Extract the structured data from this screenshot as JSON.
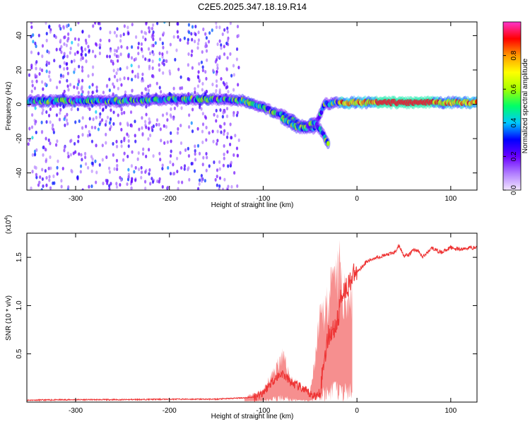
{
  "page": {
    "title": "C2E5.2025.347.18.19.R14"
  },
  "chart_data": [
    {
      "id": "spectrogram",
      "type": "heatmap",
      "title": "C2E5.2025.347.18.19.R14",
      "xlabel": "Height of straight line (km)",
      "ylabel": "Frequency (Hz)",
      "xlim": [
        -352,
        128
      ],
      "ylim": [
        -50,
        48
      ],
      "xticks": [
        -300,
        -200,
        -100,
        0,
        100
      ],
      "yticks": [
        -40,
        -20,
        0,
        20,
        40
      ],
      "colorbar": {
        "label": "Normalized spectral amplitude",
        "range": [
          0,
          1
        ],
        "ticks": [
          0.0,
          0.2,
          0.4,
          0.6,
          0.8
        ],
        "tick_labels": [
          "0.0",
          "0.2",
          "0.4",
          "0.6",
          "0.8"
        ],
        "colors": [
          "#f3e6ff",
          "#b07cff",
          "#6a00ff",
          "#0000ff",
          "#00c8ff",
          "#00ff66",
          "#a6ff00",
          "#ffff00",
          "#ff9900",
          "#ff0000",
          "#ff33cc"
        ]
      },
      "carrier_track": [
        {
          "x": -350,
          "f": 2
        },
        {
          "x": -300,
          "f": 2
        },
        {
          "x": -250,
          "f": 2
        },
        {
          "x": -200,
          "f": 3
        },
        {
          "x": -150,
          "f": 3
        },
        {
          "x": -120,
          "f": 2
        },
        {
          "x": -100,
          "f": -2
        },
        {
          "x": -80,
          "f": -6
        },
        {
          "x": -60,
          "f": -12
        },
        {
          "x": -45,
          "f": -14
        },
        {
          "x": -35,
          "f": 0
        },
        {
          "x": -20,
          "f": 1
        },
        {
          "x": 0,
          "f": 1
        },
        {
          "x": 50,
          "f": 1
        },
        {
          "x": 128,
          "f": 1
        }
      ],
      "secondary_track": [
        {
          "x": -80,
          "f": -8
        },
        {
          "x": -65,
          "f": -13
        },
        {
          "x": -55,
          "f": -14
        },
        {
          "x": -45,
          "f": -10
        },
        {
          "x": -30,
          "f": -23
        }
      ],
      "noise_region": {
        "x_start": -352,
        "x_end": -125,
        "f_min": -50,
        "f_max": 48
      }
    },
    {
      "id": "snr",
      "type": "line",
      "xlabel": "Height of straight line (km)",
      "ylabel": "SNR (10 * v/v)",
      "y_multiplier": "(x10",
      "y_multiplier_exp": "4",
      "y_multiplier_close": ")",
      "xlim": [
        -352,
        128
      ],
      "ylim": [
        0,
        1.75
      ],
      "xticks": [
        -300,
        -200,
        -100,
        0,
        100
      ],
      "yticks": [
        0.5,
        1.0,
        1.5
      ],
      "ytick_labels": [
        "0.5",
        "1.0",
        "1.5"
      ],
      "color": "#ee3333",
      "series": {
        "name": "SNR",
        "x": [
          -352,
          -300,
          -250,
          -200,
          -150,
          -110,
          -100,
          -90,
          -80,
          -70,
          -60,
          -50,
          -42,
          -38,
          -35,
          -30,
          -25,
          -20,
          -18,
          -15,
          -10,
          -5,
          0,
          10,
          20,
          30,
          40,
          45,
          50,
          55,
          60,
          65,
          70,
          75,
          80,
          85,
          90,
          95,
          100,
          110,
          120,
          128
        ],
        "y": [
          0.02,
          0.025,
          0.025,
          0.03,
          0.03,
          0.05,
          0.1,
          0.22,
          0.3,
          0.2,
          0.15,
          0.08,
          0.06,
          0.2,
          0.45,
          0.7,
          0.75,
          0.85,
          1.05,
          1.15,
          1.2,
          1.3,
          1.35,
          1.45,
          1.5,
          1.52,
          1.55,
          1.62,
          1.52,
          1.52,
          1.58,
          1.57,
          1.5,
          1.55,
          1.6,
          1.57,
          1.55,
          1.58,
          1.6,
          1.58,
          1.6,
          1.6
        ]
      },
      "envelope_upper": {
        "x": [
          -120,
          -100,
          -90,
          -80,
          -70,
          -60,
          -50,
          -45,
          -40,
          -35,
          -30,
          -25,
          -20,
          -18,
          -15,
          -10,
          -5
        ],
        "y": [
          0.06,
          0.15,
          0.35,
          0.6,
          0.3,
          0.2,
          0.12,
          0.5,
          1.0,
          1.2,
          1.35,
          1.5,
          1.6,
          1.75,
          1.3,
          1.4,
          1.35
        ]
      }
    }
  ]
}
